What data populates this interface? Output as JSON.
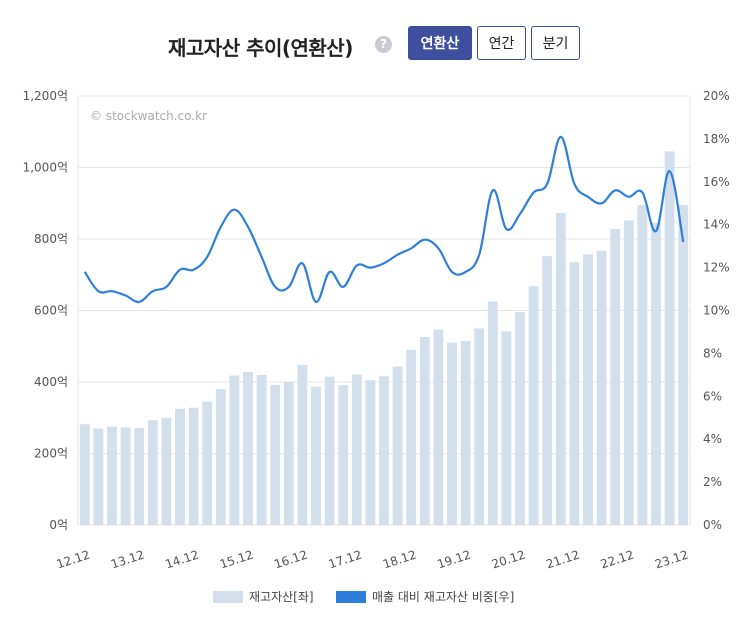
{
  "header": {
    "title": "재고자산 추이(연환산)",
    "help_symbol": "?",
    "tabs": [
      {
        "label": "연환산",
        "active": true
      },
      {
        "label": "연간",
        "active": false
      },
      {
        "label": "분기",
        "active": false
      }
    ]
  },
  "watermark": "© stockwatch.co.kr",
  "colors": {
    "bar": "#d3dfeb",
    "line": "#2e7fdb",
    "accent": "#3d4f9e",
    "grid": "#e6e6e6"
  },
  "legend": {
    "bar_label": "재고자산[좌]",
    "line_label": "매출 대비 재고자산 비중[우]"
  },
  "chart_data": {
    "type": "bar",
    "x_tick_labels": [
      "12.12",
      "13.12",
      "14.12",
      "15.12",
      "16.12",
      "17.12",
      "18.12",
      "19.12",
      "20.12",
      "21.12",
      "22.12",
      "23.12"
    ],
    "y_left": {
      "ticks": [
        "0억",
        "200억",
        "400억",
        "600억",
        "800억",
        "1,000억",
        "1,200억"
      ],
      "ylim": [
        0,
        1200
      ],
      "unit": "억"
    },
    "y_right": {
      "ticks": [
        "0%",
        "2%",
        "4%",
        "6%",
        "8%",
        "10%",
        "12%",
        "14%",
        "16%",
        "18%",
        "20%"
      ],
      "ylim": [
        0,
        20
      ],
      "unit": "%"
    },
    "grid": true,
    "legend_position": "bottom",
    "series": [
      {
        "name": "재고자산[좌]",
        "type": "bar",
        "axis": "left",
        "values": [
          282,
          270,
          275,
          273,
          271,
          293,
          300,
          325,
          328,
          345,
          380,
          418,
          428,
          420,
          392,
          400,
          448,
          387,
          415,
          391,
          421,
          405,
          416,
          443,
          490,
          526,
          547,
          510,
          515,
          550,
          625,
          542,
          596,
          668,
          752,
          873,
          735,
          757,
          767,
          828,
          852,
          895,
          845,
          1045,
          895
        ]
      },
      {
        "name": "매출 대비 재고자산 비중[우]",
        "type": "line",
        "axis": "right",
        "values": [
          11.8,
          10.9,
          10.9,
          10.7,
          10.4,
          10.9,
          11.1,
          11.9,
          11.9,
          12.5,
          13.9,
          14.7,
          13.9,
          12.5,
          11.1,
          11.1,
          12.2,
          10.4,
          11.8,
          11.1,
          12.1,
          12.0,
          12.2,
          12.6,
          12.9,
          13.3,
          12.9,
          11.8,
          11.8,
          12.6,
          15.6,
          13.8,
          14.5,
          15.5,
          15.9,
          18.1,
          15.9,
          15.3,
          15.0,
          15.6,
          15.3,
          15.5,
          13.7,
          16.5,
          13.2
        ]
      }
    ]
  }
}
